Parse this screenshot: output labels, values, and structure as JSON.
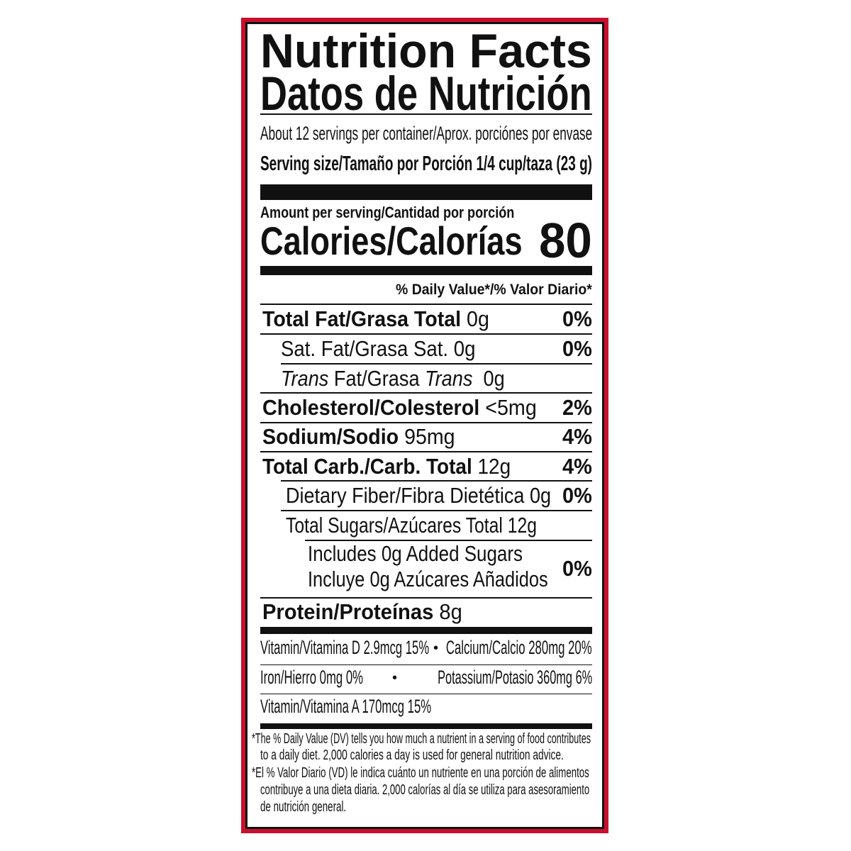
{
  "title_en": "Nutrition Facts",
  "title_es": "Datos de Nutrición",
  "servings": "About 12 servings per container/Aprox. porciónes por envase",
  "serving_size": "Serving size/Tamaño por Porción 1/4 cup/taza (23 g)",
  "amount_per_serving": "Amount per serving/Cantidad por porción",
  "calories_label": "Calories/Calorías",
  "calories_value": "80",
  "dv_header": "% Daily Value*/% Valor Diario*",
  "nutrients": [
    {
      "label": "Total Fat/Grasa Total",
      "amount": "0g",
      "dv": "0%"
    },
    {
      "label": "Sat. Fat/Grasa Sat.",
      "amount": "0g",
      "dv": "0%"
    },
    {
      "label_a": "Trans",
      "label_b": " Fat/Grasa ",
      "label_c": "Trans",
      "amount": "0g"
    },
    {
      "label": "Cholesterol/Colesterol",
      "amount": "<5mg",
      "dv": "2%"
    },
    {
      "label": "Sodium/Sodio",
      "amount": "95mg",
      "dv": "4%"
    },
    {
      "label": "Total Carb./Carb. Total",
      "amount": "12g",
      "dv": "4%"
    },
    {
      "label": "Dietary Fiber/Fibra Dietética",
      "amount": "0g",
      "dv": "0%"
    },
    {
      "label": "Total Sugars/Azúcares Total",
      "amount": "12g"
    },
    {
      "line1": "Includes 0g Added Sugars",
      "line2": "Incluye 0g Azúcares Añadidos",
      "dv": "0%"
    },
    {
      "label": "Protein/Proteínas",
      "amount": "8g"
    }
  ],
  "vitamins": {
    "vitamin_d": "Vitamin/Vitamina D 2.9mcg 15%",
    "calcium": "Calcium/Calcio 280mg 20%",
    "iron": "Iron/Hierro 0mg 0%",
    "potassium": "Potassium/Potasio 360mg 6%",
    "vitamin_a": "Vitamin/Vitamina A 170mcg 15%",
    "bullet": "•"
  },
  "footnote_en_1": "*The % Daily Value (DV) tells you how much a nutrient in a serving of food contributes",
  "footnote_en_2": "to a daily diet. 2,000 calories a day is used for general nutrition advice.",
  "footnote_es_1": "*El % Valor Diario (VD) le indica cuánto un nutriente en una porción de alimentos",
  "footnote_es_2": "contribuye a una dieta diaria. 2,000 calorías al día se utiliza para asesoramiento",
  "footnote_es_3": "de nutrición general.",
  "colors": {
    "border": "#c8102e",
    "ink": "#111111"
  }
}
